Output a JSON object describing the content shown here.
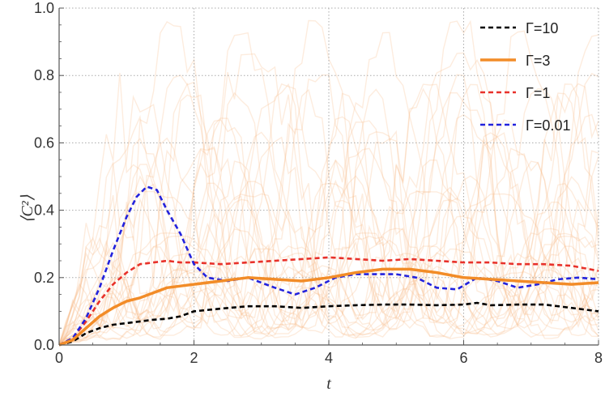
{
  "chart_data": {
    "type": "line",
    "title": "",
    "xlabel": "t",
    "ylabel": "⟨C²⟩",
    "xlim": [
      0,
      8
    ],
    "ylim": [
      0,
      1.0
    ],
    "grid": true,
    "legend_placement": "top-right",
    "x_ticks": [
      "0",
      "2",
      "4",
      "6",
      "8"
    ],
    "y_ticks": [
      "0.0",
      "0.2",
      "0.4",
      "0.6",
      "0.8",
      "1.0"
    ],
    "x_tick_values": [
      0,
      2,
      4,
      6,
      8
    ],
    "y_tick_values": [
      0,
      0.2,
      0.4,
      0.6,
      0.8,
      1.0
    ],
    "series": [
      {
        "name": "Γ=10",
        "color": "#000000",
        "style": "dashed",
        "x": [
          0,
          0.2,
          0.4,
          0.6,
          0.8,
          1.0,
          1.2,
          1.4,
          1.6,
          1.8,
          2.0,
          2.4,
          2.8,
          3.2,
          3.6,
          4.0,
          4.4,
          4.8,
          5.2,
          5.6,
          6.0,
          6.2,
          6.4,
          6.8,
          7.2,
          7.6,
          8.0
        ],
        "values": [
          0,
          0.01,
          0.035,
          0.05,
          0.06,
          0.065,
          0.07,
          0.075,
          0.078,
          0.085,
          0.1,
          0.108,
          0.115,
          0.115,
          0.11,
          0.115,
          0.118,
          0.12,
          0.12,
          0.118,
          0.12,
          0.125,
          0.118,
          0.12,
          0.12,
          0.11,
          0.1
        ]
      },
      {
        "name": "Γ=3",
        "color": "#f28c28",
        "style": "solid",
        "x": [
          0,
          0.2,
          0.4,
          0.6,
          0.8,
          1.0,
          1.2,
          1.4,
          1.6,
          1.8,
          2.0,
          2.4,
          2.8,
          3.2,
          3.6,
          4.0,
          4.4,
          4.8,
          5.2,
          5.6,
          6.0,
          6.4,
          6.8,
          7.2,
          7.6,
          8.0
        ],
        "values": [
          0,
          0.015,
          0.05,
          0.085,
          0.11,
          0.13,
          0.14,
          0.155,
          0.17,
          0.175,
          0.18,
          0.19,
          0.2,
          0.195,
          0.19,
          0.2,
          0.215,
          0.225,
          0.225,
          0.215,
          0.2,
          0.195,
          0.19,
          0.185,
          0.18,
          0.185
        ]
      },
      {
        "name": "Γ=1",
        "color": "#e8312a",
        "style": "dashed",
        "x": [
          0,
          0.2,
          0.4,
          0.6,
          0.8,
          1.0,
          1.2,
          1.4,
          1.6,
          1.8,
          2.0,
          2.4,
          2.8,
          3.2,
          3.6,
          4.0,
          4.4,
          4.8,
          5.2,
          5.6,
          6.0,
          6.4,
          6.8,
          7.2,
          7.6,
          8.0
        ],
        "values": [
          0,
          0.02,
          0.07,
          0.13,
          0.18,
          0.215,
          0.24,
          0.245,
          0.25,
          0.245,
          0.245,
          0.24,
          0.245,
          0.25,
          0.255,
          0.26,
          0.255,
          0.25,
          0.255,
          0.25,
          0.245,
          0.245,
          0.24,
          0.24,
          0.235,
          0.22
        ]
      },
      {
        "name": "Γ=0.01",
        "color": "#2222dd",
        "style": "dashed",
        "x": [
          0,
          0.2,
          0.4,
          0.6,
          0.8,
          1.0,
          1.15,
          1.3,
          1.45,
          1.6,
          1.8,
          2.0,
          2.2,
          2.5,
          2.8,
          3.2,
          3.5,
          3.8,
          4.1,
          4.4,
          4.7,
          5.0,
          5.3,
          5.6,
          5.9,
          6.2,
          6.5,
          6.8,
          7.1,
          7.4,
          7.7,
          8.0
        ],
        "values": [
          0,
          0.02,
          0.08,
          0.17,
          0.28,
          0.38,
          0.44,
          0.47,
          0.46,
          0.4,
          0.33,
          0.24,
          0.2,
          0.19,
          0.2,
          0.17,
          0.15,
          0.17,
          0.2,
          0.21,
          0.21,
          0.21,
          0.2,
          0.17,
          0.165,
          0.2,
          0.19,
          0.17,
          0.18,
          0.195,
          0.2,
          0.195
        ]
      }
    ],
    "background_trajectories_color": "#f7b98a",
    "background_trajectories_count": 30
  }
}
